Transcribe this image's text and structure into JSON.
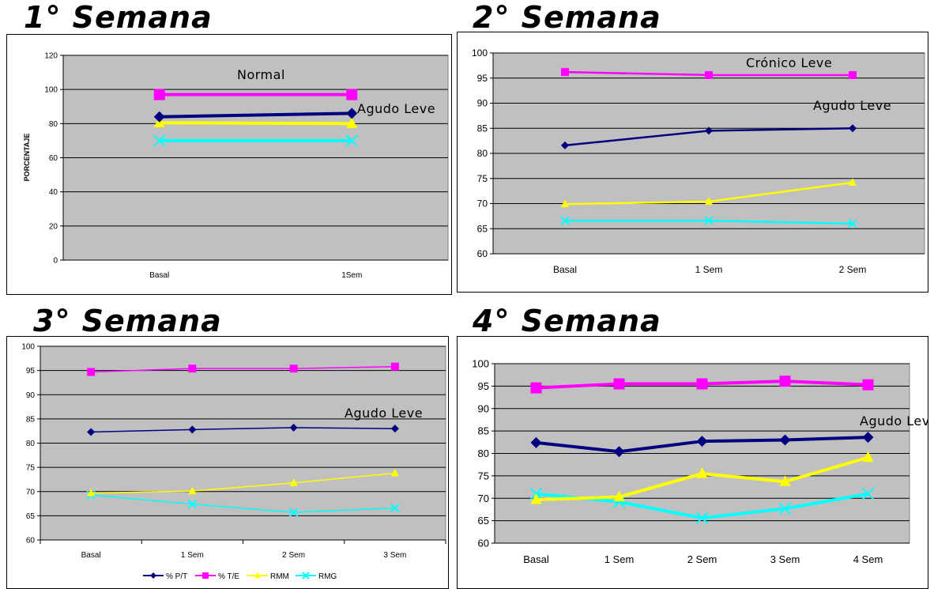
{
  "titles": [
    "1° Semana",
    "2° Semana",
    "3° Semana",
    "4° Semana"
  ],
  "colors": {
    "pt": "#000080",
    "te": "#FF00FF",
    "rmm": "#FFFF00",
    "rmg": "#00FFFF",
    "plot_bg": "#C0C0C0"
  },
  "chart_data": [
    {
      "type": "line",
      "title": "1° Semana",
      "ylabel": "PORCENTAJE",
      "categories": [
        "Basal",
        "1Sem"
      ],
      "ylim": [
        0,
        120
      ],
      "yticks": [
        0,
        20,
        40,
        60,
        80,
        100,
        120
      ],
      "grid": true,
      "series": [
        {
          "name": "% P/T",
          "values": [
            84,
            86
          ]
        },
        {
          "name": "% T/E",
          "values": [
            97,
            97
          ]
        },
        {
          "name": "RMM",
          "values": [
            80.5,
            80
          ]
        },
        {
          "name": "RMG",
          "values": [
            70,
            70
          ]
        }
      ],
      "annotations": [
        "Normal",
        "Agudo Leve"
      ]
    },
    {
      "type": "line",
      "title": "2° Semana",
      "categories": [
        "Basal",
        "1 Sem",
        "2 Sem"
      ],
      "ylim": [
        60,
        100
      ],
      "yticks": [
        60,
        65,
        70,
        75,
        80,
        85,
        90,
        95,
        100
      ],
      "grid": true,
      "series": [
        {
          "name": "% P/T",
          "values": [
            81.6,
            84.5,
            85
          ]
        },
        {
          "name": "% T/E",
          "values": [
            96.2,
            95.6,
            95.6
          ]
        },
        {
          "name": "RMM",
          "values": [
            69.9,
            70.4,
            74.2
          ]
        },
        {
          "name": "RMG",
          "values": [
            66.6,
            66.6,
            66
          ]
        }
      ],
      "annotations": [
        "Crónico Leve",
        "Agudo Leve"
      ]
    },
    {
      "type": "line",
      "title": "3° Semana",
      "categories": [
        "Basal",
        "1 Sem",
        "2 Sem",
        "3 Sem"
      ],
      "ylim": [
        60,
        100
      ],
      "yticks": [
        60,
        65,
        70,
        75,
        80,
        85,
        90,
        95,
        100
      ],
      "grid": true,
      "legend": "bottom",
      "series": [
        {
          "name": "% P/T",
          "values": [
            82.3,
            82.8,
            83.2,
            83
          ]
        },
        {
          "name": "% T/E",
          "values": [
            94.7,
            95.4,
            95.4,
            95.8
          ]
        },
        {
          "name": "RMM",
          "values": [
            69.7,
            70.1,
            71.8,
            73.8
          ]
        },
        {
          "name": "RMG",
          "values": [
            69.3,
            67.4,
            65.7,
            66.6
          ]
        }
      ],
      "annotations": [
        "Agudo Leve"
      ]
    },
    {
      "type": "line",
      "title": "4° Semana",
      "categories": [
        "Basal",
        "1 Sem",
        "2 Sem",
        "3 Sem",
        "4 Sem"
      ],
      "ylim": [
        60,
        100
      ],
      "yticks": [
        60,
        65,
        70,
        75,
        80,
        85,
        90,
        95,
        100
      ],
      "grid": true,
      "series": [
        {
          "name": "% P/T",
          "values": [
            82.4,
            80.4,
            82.7,
            83,
            83.6
          ]
        },
        {
          "name": "% T/E",
          "values": [
            94.6,
            95.5,
            95.5,
            96.1,
            95.3
          ]
        },
        {
          "name": "RMM",
          "values": [
            69.7,
            70.3,
            75.5,
            73.7,
            79.1
          ]
        },
        {
          "name": "RMG",
          "values": [
            71,
            69.2,
            65.6,
            67.7,
            71
          ]
        }
      ],
      "annotations": [
        "Agudo Leve"
      ]
    }
  ]
}
